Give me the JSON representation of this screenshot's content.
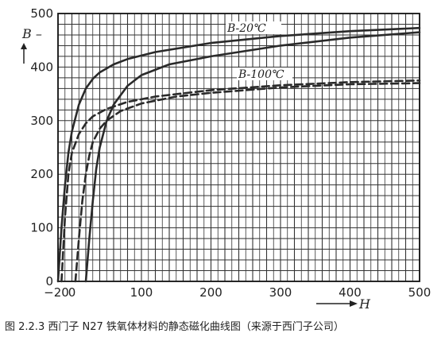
{
  "chart_data": {
    "type": "line",
    "title": "",
    "xlabel": "H",
    "ylabel": "B",
    "xlim": [
      -20,
      500
    ],
    "ylim": [
      0,
      500
    ],
    "xticks": [
      -20,
      0,
      100,
      200,
      300,
      400,
      500
    ],
    "xtick_labels": [
      "−20",
      "0",
      "100",
      "200",
      "300",
      "400",
      "500"
    ],
    "yticks": [
      0,
      100,
      200,
      300,
      400,
      500
    ],
    "grid": true,
    "series": [
      {
        "name": "B-20℃",
        "style": "solid",
        "color": "#2a2a2a",
        "x": [
          -20,
          -15,
          -10,
          -5,
          0,
          10,
          20,
          30,
          40,
          60,
          80,
          120,
          200,
          300,
          400,
          500
        ],
        "y": [
          0,
          100,
          180,
          240,
          280,
          330,
          360,
          378,
          390,
          405,
          415,
          428,
          445,
          458,
          467,
          473
        ]
      },
      {
        "name": "",
        "style": "solid",
        "color": "#2a2a2a",
        "x": [
          20,
          25,
          30,
          35,
          40,
          50,
          60,
          80,
          100,
          140,
          200,
          300,
          400,
          500
        ],
        "y": [
          0,
          80,
          150,
          210,
          250,
          300,
          330,
          365,
          385,
          405,
          420,
          440,
          455,
          465
        ]
      },
      {
        "name": "B-100℃",
        "style": "dashed",
        "color": "#2a2a2a",
        "x": [
          -15,
          -10,
          -5,
          0,
          10,
          20,
          30,
          50,
          80,
          120,
          200,
          300,
          400,
          500
        ],
        "y": [
          0,
          120,
          200,
          240,
          275,
          295,
          308,
          322,
          335,
          345,
          357,
          366,
          372,
          375
        ]
      },
      {
        "name": "",
        "style": "dashed",
        "color": "#2a2a2a",
        "x": [
          5,
          10,
          15,
          20,
          25,
          30,
          40,
          50,
          70,
          100,
          150,
          200,
          300,
          400,
          500
        ],
        "y": [
          0,
          80,
          150,
          200,
          235,
          260,
          285,
          300,
          318,
          332,
          345,
          352,
          362,
          368,
          370
        ]
      }
    ],
    "annotations": [
      {
        "text": "B-20℃",
        "series": 0
      },
      {
        "text": "B-100℃",
        "series": 2
      }
    ]
  },
  "caption": "图 2.2.3   西门子 N27 铁氧体材料的静态磁化曲线图（来源于西门子公司）"
}
